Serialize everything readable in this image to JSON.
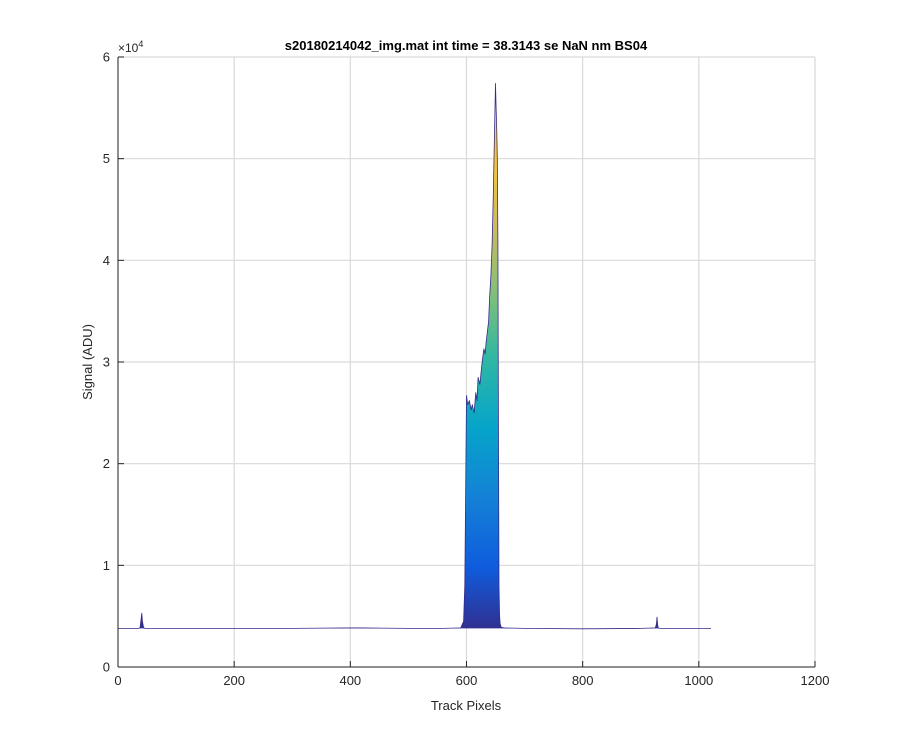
{
  "chart_data": {
    "type": "area",
    "title": "s20180214042_img.mat int time = 38.3143 se  NaN nm BS04",
    "xlabel": "Track Pixels",
    "ylabel": "Signal (ADU)",
    "y_exponent_label": "×10",
    "y_exponent_power": "4",
    "xlim": [
      0,
      1200
    ],
    "ylim": [
      0,
      60000
    ],
    "x_ticks": [
      0,
      200,
      400,
      600,
      800,
      1000,
      1200
    ],
    "x_tick_labels": [
      "0",
      "200",
      "400",
      "600",
      "800",
      "1000",
      "1200"
    ],
    "y_ticks": [
      0,
      10000,
      20000,
      30000,
      40000,
      50000,
      60000
    ],
    "y_tick_labels": [
      "0",
      "1",
      "2",
      "3",
      "4",
      "5",
      "6"
    ],
    "grid": true,
    "baseline": 3800,
    "colormap": [
      "#352a87",
      "#0f5cdd",
      "#1481d6",
      "#06a4ca",
      "#2eb7a4",
      "#87bf77",
      "#d1bb59",
      "#fec832",
      "#f9fb0e"
    ],
    "series": [
      {
        "x": [
          0,
          36,
          38,
          40,
          41,
          42,
          44,
          46,
          100,
          200,
          300,
          400,
          420,
          500,
          560,
          590,
          595,
          597,
          600,
          602,
          605,
          608,
          610,
          613,
          616,
          618,
          620,
          623,
          626,
          628,
          630,
          632,
          634,
          636,
          638,
          640,
          642,
          644,
          646,
          647,
          648,
          649,
          650,
          651,
          652,
          653,
          654,
          655,
          656,
          657,
          658,
          660,
          665,
          700,
          800,
          900,
          925,
          927,
          928,
          929,
          930,
          933,
          1000,
          1021
        ],
        "y": [
          3800,
          3800,
          3900,
          4800,
          5300,
          4500,
          3900,
          3800,
          3800,
          3800,
          3800,
          3850,
          3850,
          3800,
          3800,
          3850,
          4500,
          8000,
          26700,
          25800,
          26200,
          25300,
          25800,
          25000,
          27000,
          26200,
          28500,
          27800,
          29500,
          30500,
          31300,
          30800,
          32000,
          33000,
          34000,
          36500,
          38500,
          41500,
          46000,
          49000,
          52000,
          55000,
          57400,
          55000,
          53000,
          50000,
          42000,
          25000,
          8000,
          5000,
          4200,
          3900,
          3850,
          3800,
          3750,
          3800,
          3850,
          4200,
          4900,
          4200,
          3850,
          3800,
          3800,
          3800
        ]
      }
    ]
  }
}
